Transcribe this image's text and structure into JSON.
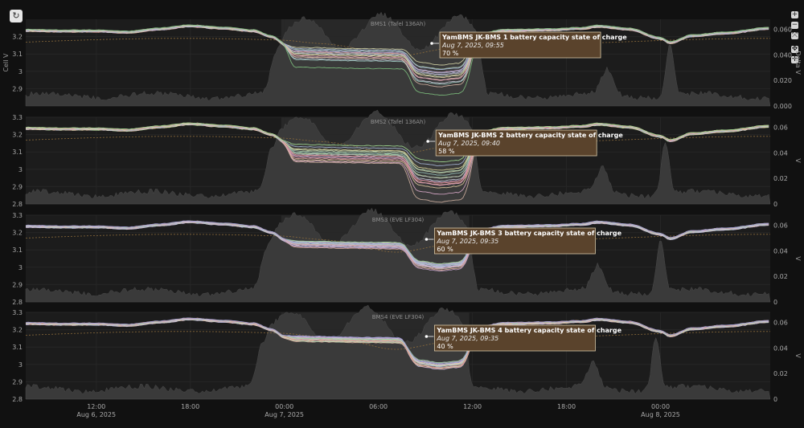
{
  "controls": {
    "reset_icon": "↻",
    "zoom_in_icon": "+",
    "zoom_out_icon": "−",
    "fit_icon": "⤧",
    "pan_icon": "✥",
    "move_icon": "✛"
  },
  "axis_labels": {
    "left": "Cell V",
    "right_top": "Delta V",
    "right": "V"
  },
  "x_ticks": [
    {
      "h": 12,
      "line1": "12:00",
      "line2": "Aug 6, 2025"
    },
    {
      "h": 18,
      "line1": "18:00",
      "line2": ""
    },
    {
      "h": 24,
      "line1": "00:00",
      "line2": "Aug 7, 2025"
    },
    {
      "h": 30,
      "line1": "06:00",
      "line2": ""
    },
    {
      "h": 36,
      "line1": "12:00",
      "line2": ""
    },
    {
      "h": 42,
      "line1": "18:00",
      "line2": ""
    },
    {
      "h": 48,
      "line1": "00:00",
      "line2": "Aug 8, 2025"
    }
  ],
  "colors": {
    "background": "#111111",
    "panel": "#1c1c1c",
    "area": "#3a3a3a",
    "grid": "#262626",
    "delta_line": "#8a6a3a",
    "tooltip_bg": "#5a432c",
    "tooltip_border": "#d9c9a8"
  },
  "chart_data": [
    {
      "type": "line",
      "title": "BMS1 (Tafel 136Ah)",
      "x_range_hours": [
        7.5,
        55
      ],
      "ylim": [
        2.8,
        3.3
      ],
      "y_ticks": [
        2.9,
        3,
        3.1,
        3.2
      ],
      "y_tick_labels": [
        "2.9",
        "3",
        "3.1",
        "3.2"
      ],
      "y2lim": [
        0,
        0.068
      ],
      "y2_ticks": [
        0,
        0.02,
        0.04,
        0.06
      ],
      "y2_tick_labels": [
        "0.000",
        "0.020",
        "0.040",
        "0.060"
      ],
      "cell_count": 16,
      "cell_colors": [
        "#e8a9a0",
        "#d9b8a8",
        "#c8c8d8",
        "#b7b7e0",
        "#a9c8a9",
        "#e0c9a0",
        "#c0a0c8",
        "#9cc9c0",
        "#d8d8a8",
        "#b0b0b0",
        "#e0a0b8",
        "#a8b8d8",
        "#c8d8b0",
        "#98a8c8",
        "#d0b0a0",
        "#7ec07e"
      ],
      "low_day1": [
        3.08,
        3.05,
        3.04,
        3.07,
        3.09,
        3.06,
        3.08,
        3.03,
        3.1,
        3.07,
        3.05,
        3.09,
        3.06,
        3.08,
        3.04,
        2.98
      ],
      "low_day2": [
        3.0,
        2.96,
        2.94,
        2.99,
        3.02,
        2.97,
        3.0,
        2.93,
        3.04,
        2.98,
        2.95,
        3.01,
        2.97,
        2.99,
        2.91,
        2.86
      ],
      "tooltip": {
        "title": "YamBMS  JK-BMS 1 battery capacity state of charge",
        "time": "Aug 7, 2025, 09:55",
        "value": "70 %",
        "x_hour": 33.92
      }
    },
    {
      "type": "line",
      "title": "BMS2 (Tafel 136Ah)",
      "x_range_hours": [
        7.5,
        55
      ],
      "ylim": [
        2.8,
        3.3
      ],
      "y_ticks": [
        2.8,
        2.9,
        3,
        3.1,
        3.2,
        3.3
      ],
      "y_tick_labels": [
        "2.8",
        "2.9",
        "3",
        "3.1",
        "3.2",
        "3.3"
      ],
      "y2lim": [
        0,
        0.068
      ],
      "y2_ticks": [
        0,
        0.02,
        0.04,
        0.06
      ],
      "y2_tick_labels": [
        "0",
        "0.02",
        "0.04",
        "0.06"
      ],
      "cell_count": 16,
      "cell_colors": [
        "#b8e0a0",
        "#e8a9a0",
        "#c8c8d8",
        "#e0c9a0",
        "#a9c8a9",
        "#c0a0c8",
        "#e6e0a0",
        "#9cc9c0",
        "#d8a8c8",
        "#b0b0b0",
        "#e0a0b8",
        "#a8b8d8",
        "#c8d8b0",
        "#d08080",
        "#d0b0a0",
        "#a0d890"
      ],
      "low_day1": [
        3.06,
        3.03,
        3.05,
        3.02,
        3.07,
        3.04,
        3.08,
        3.06,
        3.01,
        3.05,
        3.03,
        3.09,
        3.07,
        3.04,
        3.0,
        3.1
      ],
      "low_day2": [
        2.96,
        2.92,
        2.94,
        2.9,
        2.99,
        2.93,
        3.0,
        2.97,
        2.86,
        2.95,
        2.91,
        3.02,
        2.98,
        2.92,
        2.81,
        3.04
      ],
      "tooltip": {
        "title": "YamBMS  JK-BMS 2 battery capacity state of charge",
        "time": "Aug 7, 2025, 09:40",
        "value": "58 %",
        "x_hour": 33.67
      }
    },
    {
      "type": "line",
      "title": "BMS3 (EVE LF304)",
      "x_range_hours": [
        7.5,
        55
      ],
      "ylim": [
        2.8,
        3.3
      ],
      "y_ticks": [
        2.8,
        2.9,
        3,
        3.1,
        3.2,
        3.3
      ],
      "y_tick_labels": [
        "2.8",
        "2.9",
        "3",
        "3.1",
        "3.2",
        "3.3"
      ],
      "y2lim": [
        0,
        0.068
      ],
      "y2_ticks": [
        0,
        0.02,
        0.04,
        0.06
      ],
      "y2_tick_labels": [
        "0",
        "0.02",
        "0.04",
        "0.06"
      ],
      "cell_count": 16,
      "cell_colors": [
        "#c8c8e8",
        "#b7b7e0",
        "#d0b8c8",
        "#a9c8a9",
        "#e0b0a0",
        "#c8c8d8",
        "#b0c0d8",
        "#d8c0d0",
        "#a8b8d8",
        "#c0a0c8",
        "#d8d0b0",
        "#b8d0c0",
        "#c8b8e0",
        "#98c8a0",
        "#d0a0a0",
        "#a0a0d8"
      ],
      "low_day1": [
        3.1,
        3.09,
        3.11,
        3.1,
        3.08,
        3.1,
        3.11,
        3.09,
        3.1,
        3.08,
        3.11,
        3.1,
        3.09,
        3.11,
        3.09,
        3.1
      ],
      "low_day2": [
        3.01,
        3.0,
        3.02,
        3.0,
        2.99,
        3.01,
        3.02,
        3.0,
        3.01,
        2.98,
        3.02,
        3.01,
        3.0,
        3.02,
        2.99,
        3.01
      ],
      "tooltip": {
        "title": "YamBMS  JK-BMS 3 battery capacity state of charge",
        "time": "Aug 7, 2025, 09:35",
        "value": "60 %",
        "x_hour": 33.58
      }
    },
    {
      "type": "line",
      "title": "BMS4 (EVE LF304)",
      "x_range_hours": [
        7.5,
        55
      ],
      "ylim": [
        2.8,
        3.3
      ],
      "y_ticks": [
        2.8,
        2.9,
        3,
        3.1,
        3.2,
        3.3
      ],
      "y_tick_labels": [
        "2.8",
        "2.9",
        "3",
        "3.1",
        "3.2",
        "3.3"
      ],
      "y2lim": [
        0,
        0.068
      ],
      "y2_ticks": [
        0,
        0.02,
        0.04,
        0.06
      ],
      "y2_tick_labels": [
        "0",
        "0.02",
        "0.04",
        "0.06"
      ],
      "cell_count": 16,
      "cell_colors": [
        "#c8c8e8",
        "#e8b8a8",
        "#b7b7e0",
        "#d0c8a8",
        "#a9c8a9",
        "#e0a0a0",
        "#c8c8d8",
        "#b0c0d8",
        "#e8d0b0",
        "#c0a0c8",
        "#d8d0b0",
        "#b8d0c0",
        "#c8b8e0",
        "#98c8a0",
        "#d89080",
        "#a0a0d8"
      ],
      "low_day1": [
        3.12,
        3.1,
        3.11,
        3.12,
        3.1,
        3.11,
        3.12,
        3.11,
        3.1,
        3.12,
        3.11,
        3.1,
        3.12,
        3.11,
        3.1,
        3.12
      ],
      "low_day2": [
        2.99,
        3.0,
        2.98,
        3.0,
        3.01,
        2.98,
        3.0,
        2.99,
        3.0,
        3.01,
        2.98,
        2.99,
        3.0,
        3.01,
        2.98,
        3.0
      ],
      "tooltip": {
        "title": "YamBMS  JK-BMS 4 battery capacity state of charge",
        "time": "Aug 7, 2025, 09:35",
        "value": "40 %",
        "x_hour": 33.58
      }
    }
  ]
}
